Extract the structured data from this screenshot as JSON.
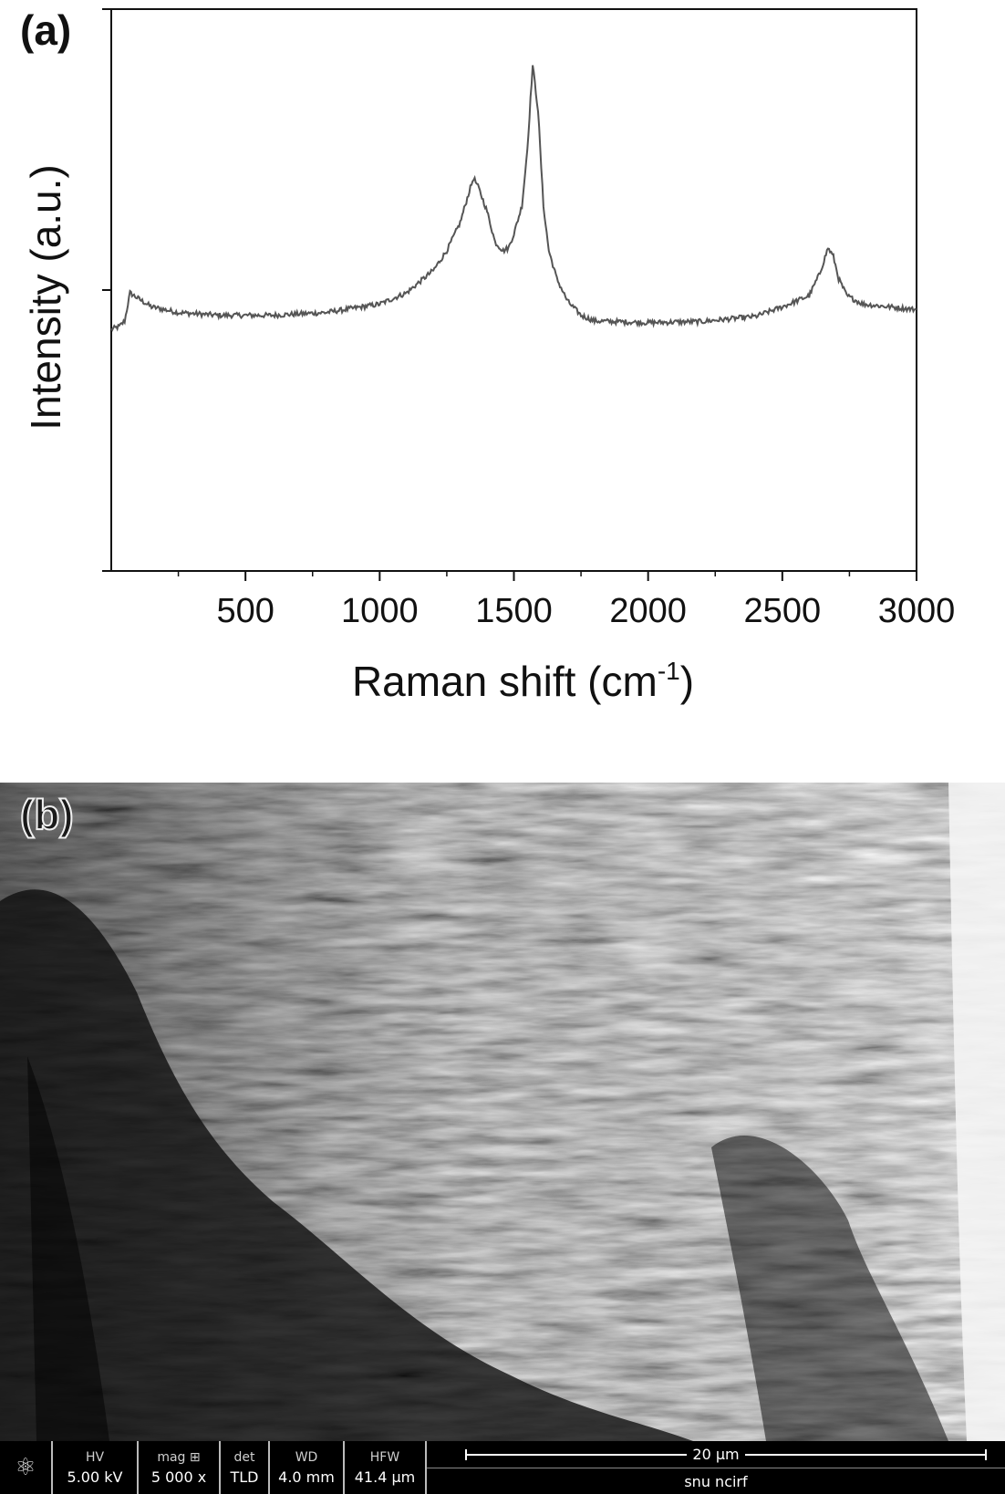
{
  "panel_a": {
    "label": "(a)"
  },
  "panel_b": {
    "label": "(b)"
  },
  "chart_data": {
    "type": "line",
    "xlabel": "Raman shift (cm",
    "xlabel_sup": "-1",
    "xlabel_end": ")",
    "ylabel": "Intensity (a.u.)",
    "xlim": [
      0,
      3000
    ],
    "ylim": [
      0,
      100
    ],
    "x_ticks": [
      500,
      1000,
      1500,
      2000,
      2500,
      3000
    ],
    "y_tick_labels": "none",
    "grid": false,
    "legend": "none",
    "line_color": "#555555",
    "series": [
      {
        "x": [
          0,
          30,
          50,
          70,
          100,
          150,
          250,
          400,
          600,
          800,
          1000,
          1100,
          1200,
          1250,
          1300,
          1330,
          1350,
          1370,
          1400,
          1430,
          1460,
          1480,
          1500,
          1530,
          1550,
          1570,
          1590,
          1610,
          1630,
          1660,
          1700,
          1750,
          1800,
          2000,
          2200,
          2400,
          2500,
          2600,
          2640,
          2670,
          2690,
          2710,
          2740,
          2800,
          2900,
          3000
        ],
        "y": [
          43,
          43.5,
          44.5,
          49.5,
          48.5,
          47,
          46,
          45.5,
          45.5,
          46,
          47.5,
          49.5,
          53.5,
          57,
          62,
          67,
          70,
          68,
          64,
          58.5,
          57,
          57.5,
          60,
          65,
          75,
          90,
          82,
          65,
          57,
          52,
          48,
          45.5,
          44.5,
          44.2,
          44.4,
          45.3,
          47,
          49,
          53,
          57.5,
          56,
          52,
          49,
          47.5,
          47,
          46.5
        ]
      }
    ]
  },
  "sem": {
    "databar": {
      "logo_icon": "fei-atom-icon",
      "hv_key": "HV",
      "hv_val": "5.00 kV",
      "mag_key": "mag ⊞",
      "mag_val": "5 000 x",
      "det_key": "det",
      "det_val": "TLD",
      "wd_key": "WD",
      "wd_val": "4.0 mm",
      "hfw_key": "HFW",
      "hfw_val": "41.4 µm",
      "scale": "20 µm",
      "lab": "snu ncirf"
    }
  }
}
